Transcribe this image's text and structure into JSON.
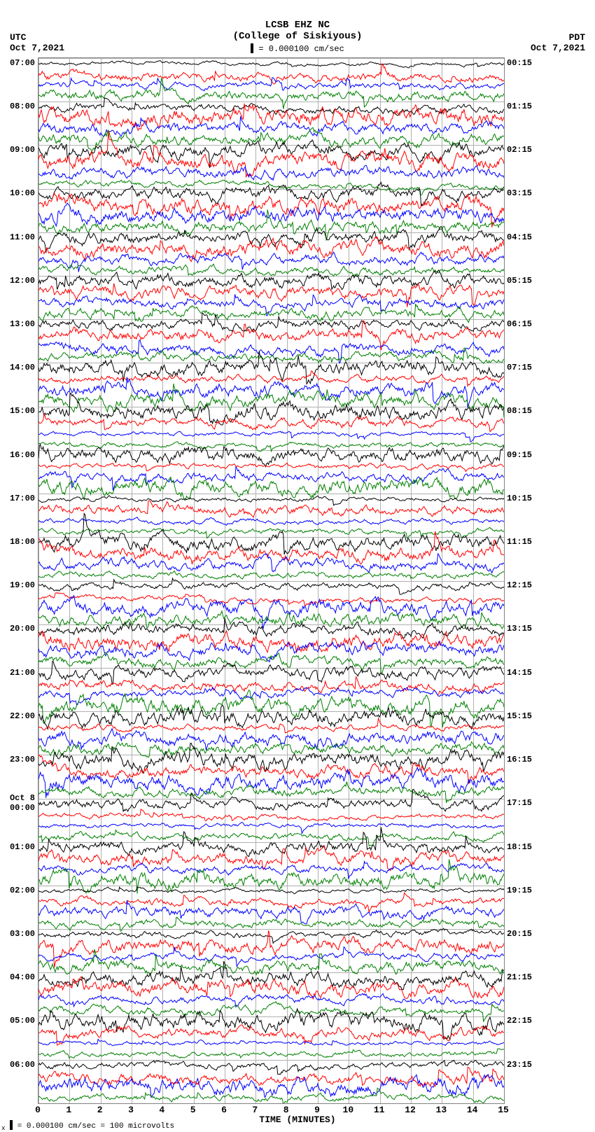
{
  "title_line1": "LCSB EHZ NC",
  "title_line2": "(College of Siskiyous)",
  "scale_text": " = 0.000100 cm/sec",
  "tz_left_label": "UTC",
  "tz_left_date": "Oct 7,2021",
  "tz_right_label": "PDT",
  "tz_right_date": "Oct 7,2021",
  "x_axis_label": "TIME (MINUTES)",
  "footer_text": " = 0.000100 cm/sec =    100 microvolts",
  "plot": {
    "type": "helicorder",
    "x_min": 0,
    "x_max": 15,
    "x_ticks": [
      0,
      1,
      2,
      3,
      4,
      5,
      6,
      7,
      8,
      9,
      10,
      11,
      12,
      13,
      14,
      15
    ],
    "grid_h_count": 24,
    "trace_colors": [
      "#000000",
      "#ff0000",
      "#0000ff",
      "#008000"
    ],
    "background_color": "#ffffff",
    "grid_color": "#b0b0b0",
    "line_width": 1,
    "trace_amplitude_range": [
      0.3,
      1.6
    ],
    "rows_per_hour": 4,
    "total_hours": 24,
    "left_labels": [
      "07:00",
      "08:00",
      "09:00",
      "10:00",
      "11:00",
      "12:00",
      "13:00",
      "14:00",
      "15:00",
      "16:00",
      "17:00",
      "18:00",
      "19:00",
      "20:00",
      "21:00",
      "22:00",
      "23:00",
      "Oct 8\n00:00",
      "01:00",
      "02:00",
      "03:00",
      "04:00",
      "05:00",
      "06:00"
    ],
    "right_labels": [
      "00:15",
      "01:15",
      "02:15",
      "03:15",
      "04:15",
      "05:15",
      "06:15",
      "07:15",
      "08:15",
      "09:15",
      "10:15",
      "11:15",
      "12:15",
      "13:15",
      "14:15",
      "15:15",
      "16:15",
      "17:15",
      "18:15",
      "19:15",
      "20:15",
      "21:15",
      "22:15",
      "23:15"
    ]
  }
}
